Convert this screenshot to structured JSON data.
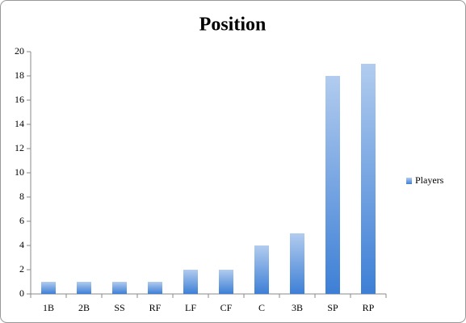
{
  "chart_data": {
    "type": "bar",
    "title": "Position",
    "categories": [
      "1B",
      "2B",
      "SS",
      "RF",
      "LF",
      "CF",
      "C",
      "3B",
      "SP",
      "RP"
    ],
    "series": [
      {
        "name": "Players",
        "color": "#3d7fd6",
        "values": [
          1,
          1,
          1,
          1,
          2,
          2,
          4,
          5,
          18,
          19
        ]
      }
    ],
    "ylim": [
      0,
      20
    ],
    "yticks": [
      0,
      2,
      4,
      6,
      8,
      10,
      12,
      14,
      16,
      18,
      20
    ],
    "grid": false,
    "legend": "right"
  }
}
